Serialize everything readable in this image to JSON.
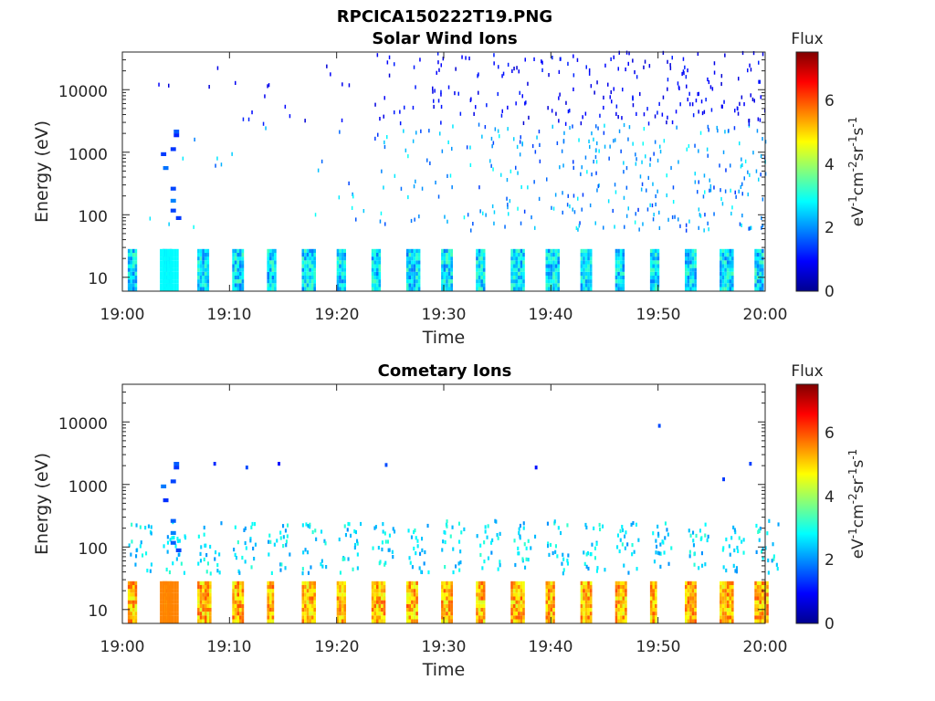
{
  "figure_title": "RPCICA150222T19.PNG",
  "chart_data": [
    {
      "type": "heatmap",
      "title": "Solar Wind Ions",
      "xlabel": "Time",
      "ylabel": "Energy (eV)",
      "x_ticks": [
        "19:00",
        "19:10",
        "19:20",
        "19:30",
        "19:40",
        "19:50",
        "20:00"
      ],
      "x_range_min": [
        0,
        60
      ],
      "y_ticks": [
        "10",
        "100",
        "1000",
        "10000"
      ],
      "y_scale": "log",
      "y_range": [
        6,
        40000
      ],
      "colorbar": {
        "title": "Flux",
        "unit_label": "eV-1cm-2sr-1s-1",
        "ticks": [
          "0",
          "2",
          "4",
          "6"
        ],
        "range": [
          0,
          7.5
        ],
        "colormap": "jet"
      },
      "features": [
        {
          "desc": "periodic low-energy bands 10-30 eV",
          "energy_range": [
            7,
            30
          ],
          "approx_flux": 3
        },
        {
          "desc": "scattered high-energy counts 100-40000 eV increasing after 19:28",
          "energy_range": [
            100,
            40000
          ],
          "approx_flux": 1
        },
        {
          "desc": "burst near 19:04-19:05",
          "energy_range": [
            90,
            2500
          ],
          "approx_flux": 1.5
        }
      ]
    },
    {
      "type": "heatmap",
      "title": "Cometary Ions",
      "xlabel": "Time",
      "ylabel": "Energy (eV)",
      "x_ticks": [
        "19:00",
        "19:10",
        "19:20",
        "19:30",
        "19:40",
        "19:50",
        "20:00"
      ],
      "x_range_min": [
        0,
        60
      ],
      "y_ticks": [
        "10",
        "100",
        "1000",
        "10000"
      ],
      "y_scale": "log",
      "y_range": [
        6,
        40000
      ],
      "colorbar": {
        "title": "Flux",
        "unit_label": "eV-1cm-2sr-1s-1",
        "ticks": [
          "0",
          "2",
          "4",
          "6"
        ],
        "range": [
          0,
          7.5
        ],
        "colormap": "jet"
      },
      "features": [
        {
          "desc": "periodic intense bands 8-25 eV",
          "energy_range": [
            7,
            28
          ],
          "approx_flux": 5.5
        },
        {
          "desc": "periodic moderate counts 40-300 eV",
          "energy_range": [
            40,
            300
          ],
          "approx_flux": 2.5
        },
        {
          "desc": "sparse counts near 2000 eV",
          "energy_range": [
            1800,
            2600
          ],
          "approx_flux": 1
        }
      ]
    }
  ]
}
